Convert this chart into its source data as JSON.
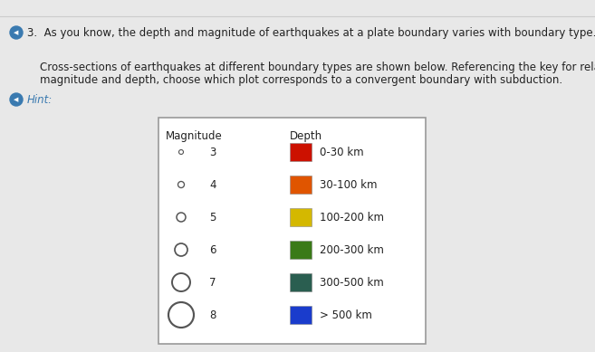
{
  "title_line1": "3.  As you know, the depth and magnitude of earthquakes at a plate boundary varies with boundary type.",
  "title_line2": "Cross-sections of earthquakes at different boundary types are shown below. Referencing the key for relative\nmagnitude and depth, choose which plot corresponds to a convergent boundary with subduction.",
  "hint_label": "Hint:",
  "magnitude_label": "Magnitude",
  "depth_label": "Depth",
  "magnitude_values": [
    "3",
    "4",
    "5",
    "6",
    "7",
    "8"
  ],
  "depth_labels": [
    "0-30 km",
    "30-100 km",
    "100-200 km",
    "200-300 km",
    "300-500 km",
    "> 500 km"
  ],
  "depth_colors": [
    "#cc1100",
    "#e05500",
    "#d4b800",
    "#3a7a18",
    "#2a5e50",
    "#1a3ccc"
  ],
  "marker_sizes": [
    2.5,
    3.5,
    5,
    7,
    10,
    14
  ],
  "bg_color": "#e8e8e8",
  "box_bg": "#ffffff",
  "text_color": "#222222",
  "hint_color": "#3a7ab0",
  "icon_color": "#3a7ab0",
  "font_size_main": 8.5,
  "font_size_table": 8.5
}
